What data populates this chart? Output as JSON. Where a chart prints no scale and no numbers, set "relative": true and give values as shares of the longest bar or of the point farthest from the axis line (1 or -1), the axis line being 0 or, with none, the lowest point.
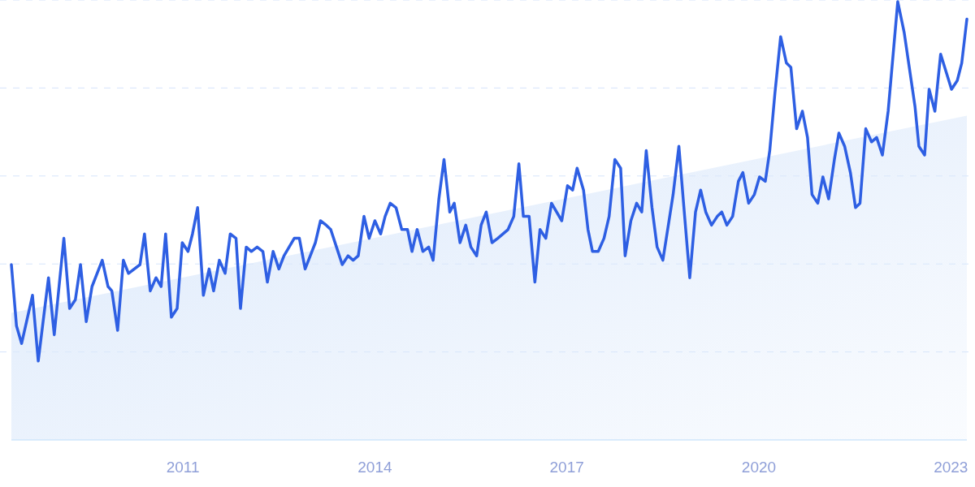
{
  "chart_data": {
    "type": "line",
    "relative": true,
    "xlim": [
      2008.32,
      2023.25
    ],
    "xticks": [
      2011,
      2014,
      2017,
      2020,
      2023
    ],
    "grid": "y",
    "marker": "none",
    "line_style": "solid",
    "series": [
      {
        "type": "area",
        "color": "#dce9fb",
        "x": [
          2008.32,
          2023.25
        ],
        "values": [
          0.29,
          0.74
        ]
      },
      {
        "color": "#2e5fe3",
        "x": [
          2008.32,
          2008.4,
          2008.48,
          2008.65,
          2008.74,
          2008.9,
          2008.99,
          2009.14,
          2009.23,
          2009.32,
          2009.4,
          2009.49,
          2009.58,
          2009.74,
          2009.83,
          2009.89,
          2009.98,
          2010.07,
          2010.15,
          2010.33,
          2010.4,
          2010.49,
          2010.58,
          2010.66,
          2010.73,
          2010.82,
          2010.91,
          2010.99,
          2011.08,
          2011.15,
          2011.23,
          2011.32,
          2011.41,
          2011.48,
          2011.57,
          2011.66,
          2011.74,
          2011.83,
          2011.9,
          2011.99,
          2012.07,
          2012.16,
          2012.25,
          2012.32,
          2012.41,
          2012.5,
          2012.58,
          2012.74,
          2012.82,
          2012.91,
          2013.07,
          2013.15,
          2013.24,
          2013.31,
          2013.4,
          2013.49,
          2013.58,
          2013.66,
          2013.74,
          2013.83,
          2013.91,
          2014.0,
          2014.09,
          2014.16,
          2014.24,
          2014.33,
          2014.42,
          2014.51,
          2014.58,
          2014.66,
          2014.75,
          2014.84,
          2014.91,
          2015.0,
          2015.08,
          2015.17,
          2015.24,
          2015.33,
          2015.42,
          2015.5,
          2015.59,
          2015.66,
          2015.74,
          2015.83,
          2015.92,
          2016.08,
          2016.17,
          2016.25,
          2016.32,
          2016.41,
          2016.5,
          2016.58,
          2016.67,
          2016.76,
          2016.92,
          2017.01,
          2017.09,
          2017.16,
          2017.26,
          2017.33,
          2017.4,
          2017.49,
          2017.58,
          2017.66,
          2017.75,
          2017.84,
          2017.91,
          2018.0,
          2018.09,
          2018.17,
          2018.24,
          2018.33,
          2018.41,
          2018.5,
          2018.66,
          2018.75,
          2018.84,
          2018.92,
          2019.01,
          2019.09,
          2019.17,
          2019.26,
          2019.35,
          2019.42,
          2019.5,
          2019.59,
          2019.68,
          2019.75,
          2019.84,
          2019.93,
          2020.01,
          2020.1,
          2020.17,
          2020.25,
          2020.34,
          2020.43,
          2020.5,
          2020.59,
          2020.68,
          2020.76,
          2020.83,
          2020.92,
          2021.0,
          2021.09,
          2021.18,
          2021.25,
          2021.34,
          2021.43,
          2021.51,
          2021.58,
          2021.67,
          2021.76,
          2021.84,
          2021.93,
          2022.02,
          2022.17,
          2022.27,
          2022.35,
          2022.44,
          2022.5,
          2022.59,
          2022.66,
          2022.75,
          2022.84,
          2023.01,
          2023.1,
          2023.17,
          2023.25
        ],
        "values": [
          0.4,
          0.26,
          0.22,
          0.33,
          0.18,
          0.37,
          0.24,
          0.46,
          0.3,
          0.32,
          0.4,
          0.27,
          0.35,
          0.41,
          0.35,
          0.34,
          0.25,
          0.41,
          0.38,
          0.4,
          0.47,
          0.34,
          0.37,
          0.35,
          0.47,
          0.28,
          0.3,
          0.45,
          0.43,
          0.47,
          0.53,
          0.33,
          0.39,
          0.34,
          0.41,
          0.38,
          0.47,
          0.46,
          0.3,
          0.44,
          0.43,
          0.44,
          0.43,
          0.36,
          0.43,
          0.39,
          0.42,
          0.46,
          0.46,
          0.39,
          0.45,
          0.5,
          0.49,
          0.48,
          0.44,
          0.4,
          0.42,
          0.41,
          0.42,
          0.51,
          0.46,
          0.5,
          0.47,
          0.51,
          0.54,
          0.53,
          0.48,
          0.48,
          0.43,
          0.48,
          0.43,
          0.44,
          0.41,
          0.55,
          0.64,
          0.52,
          0.54,
          0.45,
          0.49,
          0.44,
          0.42,
          0.49,
          0.52,
          0.45,
          0.46,
          0.48,
          0.51,
          0.63,
          0.51,
          0.51,
          0.36,
          0.48,
          0.46,
          0.54,
          0.5,
          0.58,
          0.57,
          0.62,
          0.57,
          0.48,
          0.43,
          0.43,
          0.46,
          0.51,
          0.64,
          0.62,
          0.42,
          0.5,
          0.54,
          0.52,
          0.66,
          0.53,
          0.44,
          0.41,
          0.56,
          0.67,
          0.51,
          0.37,
          0.52,
          0.57,
          0.52,
          0.49,
          0.51,
          0.52,
          0.49,
          0.51,
          0.59,
          0.61,
          0.54,
          0.56,
          0.6,
          0.59,
          0.66,
          0.79,
          0.92,
          0.86,
          0.85,
          0.71,
          0.75,
          0.69,
          0.56,
          0.54,
          0.6,
          0.55,
          0.64,
          0.7,
          0.67,
          0.61,
          0.53,
          0.54,
          0.71,
          0.68,
          0.69,
          0.65,
          0.75,
          1.0,
          0.93,
          0.85,
          0.76,
          0.67,
          0.65,
          0.8,
          0.75,
          0.88,
          0.8,
          0.82,
          0.86,
          0.96
        ]
      }
    ]
  }
}
